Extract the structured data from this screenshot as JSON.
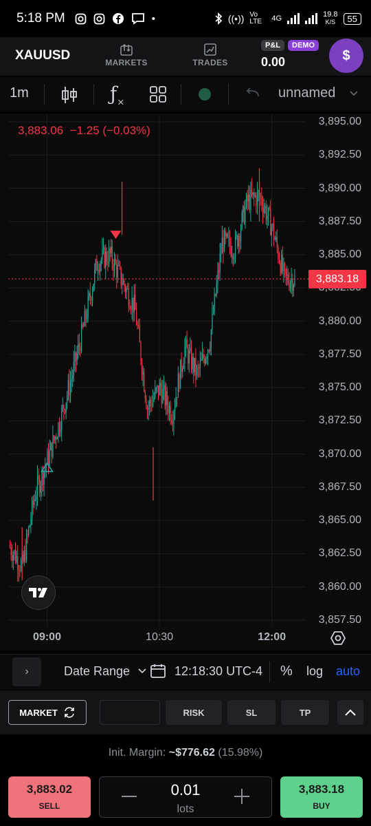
{
  "status_bar": {
    "time": "5:18 PM",
    "network_label": "Vo LTE",
    "network_gen": "4G",
    "speed": "19.8",
    "speed_unit": "K/S",
    "battery": "55"
  },
  "header": {
    "symbol": "XAUUSD",
    "markets_label": "MARKETS",
    "trades_label": "TRADES",
    "pnl_badge": "P&L",
    "demo_badge": "DEMO",
    "pnl_value": "0.00",
    "avatar_symbol": "$"
  },
  "toolbar": {
    "interval": "1m",
    "layout_name": "unnamed"
  },
  "chart": {
    "price_open_label": "3,883.06",
    "change_label": "−1.25 (−0.03%)",
    "current_price_label": "3,883.18",
    "price_axis_labels": [
      "3,895.00",
      "3,892.50",
      "3,890.00",
      "3,887.50",
      "3,885.00",
      "3,882.50",
      "3,880.00",
      "3,877.50",
      "3,875.00",
      "3,872.50",
      "3,870.00",
      "3,867.50",
      "3,865.00",
      "3,862.50",
      "3,860.00",
      "3,857.50"
    ],
    "time_labels": [
      "09:00",
      "10:30",
      "12:00"
    ],
    "up_color": "#26a69a",
    "down_color": "#f23645"
  },
  "chart_data": {
    "type": "candlestick",
    "symbol": "XAUUSD",
    "interval": "1m",
    "ylim": [
      3857.5,
      3895.0
    ],
    "time_ticks": [
      "09:00",
      "10:30",
      "12:00"
    ],
    "close_path": [
      {
        "t": "08:30",
        "price": 3863.0
      },
      {
        "t": "08:40",
        "price": 3861.5
      },
      {
        "t": "08:50",
        "price": 3867.0
      },
      {
        "t": "09:00",
        "price": 3869.5
      },
      {
        "t": "09:10",
        "price": 3872.5
      },
      {
        "t": "09:20",
        "price": 3876.0
      },
      {
        "t": "09:30",
        "price": 3880.0
      },
      {
        "t": "09:40",
        "price": 3884.5
      },
      {
        "t": "09:50",
        "price": 3885.0
      },
      {
        "t": "10:00",
        "price": 3883.0
      },
      {
        "t": "10:10",
        "price": 3881.0
      },
      {
        "t": "10:20",
        "price": 3873.5
      },
      {
        "t": "10:30",
        "price": 3875.0
      },
      {
        "t": "10:40",
        "price": 3873.0
      },
      {
        "t": "10:50",
        "price": 3878.0
      },
      {
        "t": "11:00",
        "price": 3876.0
      },
      {
        "t": "11:10",
        "price": 3878.5
      },
      {
        "t": "11:20",
        "price": 3886.0
      },
      {
        "t": "11:30",
        "price": 3885.5
      },
      {
        "t": "11:40",
        "price": 3889.0
      },
      {
        "t": "11:50",
        "price": 3889.5
      },
      {
        "t": "12:00",
        "price": 3887.0
      },
      {
        "t": "12:10",
        "price": 3883.18
      }
    ],
    "highs_marked": [
      {
        "t": "10:00",
        "price": 3890.5
      },
      {
        "t": "11:50",
        "price": 3891.5
      }
    ],
    "lows_marked": [
      {
        "t": "08:40",
        "price": 3860.5
      },
      {
        "t": "10:25",
        "price": 3866.5
      }
    ],
    "markers": [
      {
        "type": "sell",
        "t": "09:55",
        "price": 3886.5
      },
      {
        "type": "buy",
        "t": "09:00",
        "price": 3869.0
      }
    ],
    "last_price": 3883.18
  },
  "chart_bottom": {
    "expand_glyph": "›",
    "date_range_label": "Date Range",
    "clock": "12:18:30 UTC-4",
    "percent_label": "%",
    "log_label": "log",
    "auto_label": "auto"
  },
  "order": {
    "market_label": "MARKET",
    "risk_label": "RISK",
    "sl_label": "SL",
    "tp_label": "TP",
    "margin_label": "Init. Margin:",
    "margin_value": "~$776.62",
    "margin_pct": "(15.98%)",
    "sell_price": "3,883.02",
    "sell_label": "SELL",
    "buy_price": "3,883.18",
    "buy_label": "BUY",
    "lots_value": "0.01",
    "lots_label": "lots"
  }
}
